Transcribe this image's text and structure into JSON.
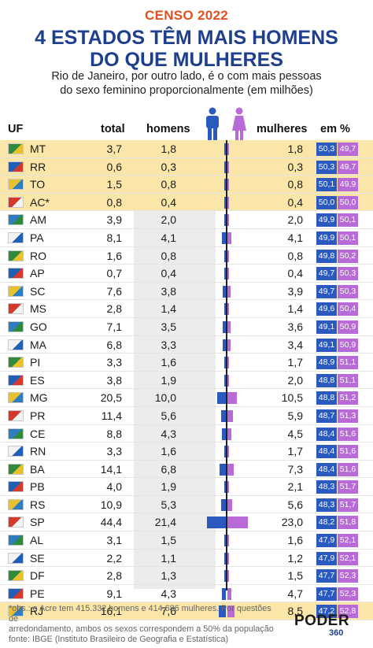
{
  "header": {
    "tag": "CENSO 2022",
    "title_line1": "4 ESTADOS TÊM MAIS HOMENS",
    "title_line2": "DO QUE MULHERES",
    "subtitle_line1": "Rio de Janeiro, por outro lado, é o com mais pessoas",
    "subtitle_line2": "do sexo feminino proporcionalmente (em milhões)"
  },
  "columns": {
    "uf": "UF",
    "total": "total",
    "homens": "homens",
    "mulheres": "mulheres",
    "pct": "em %"
  },
  "icons": {
    "male": "male-person-icon",
    "female": "female-person-icon"
  },
  "colors": {
    "male": "#2a5ac0",
    "female": "#b86ad6",
    "highlight": "#fbe6a9",
    "title": "#1e3f8e",
    "tag": "#e3501e"
  },
  "chart_data": {
    "type": "table",
    "rows": [
      {
        "uf": "MT",
        "total": "3,7",
        "homens": "1,8",
        "mulheres": "1,8",
        "pct_h": "50,3",
        "pct_m": "49,7",
        "h": 1.85,
        "m": 1.83,
        "highlight": true
      },
      {
        "uf": "RR",
        "total": "0,6",
        "homens": "0,3",
        "mulheres": "0,3",
        "pct_h": "50,3",
        "pct_m": "49,7",
        "h": 0.32,
        "m": 0.32,
        "highlight": true
      },
      {
        "uf": "TO",
        "total": "1,5",
        "homens": "0,8",
        "mulheres": "0,8",
        "pct_h": "50,1",
        "pct_m": "49,9",
        "h": 0.77,
        "m": 0.76,
        "highlight": true
      },
      {
        "uf": "AC*",
        "total": "0,8",
        "homens": "0,4",
        "mulheres": "0,4",
        "pct_h": "50,0",
        "pct_m": "50,0",
        "h": 0.42,
        "m": 0.41,
        "highlight": true
      },
      {
        "uf": "AM",
        "total": "3,9",
        "homens": "2,0",
        "mulheres": "2,0",
        "pct_h": "49,9",
        "pct_m": "50,1",
        "h": 1.97,
        "m": 1.97,
        "highlight": false
      },
      {
        "uf": "PA",
        "total": "8,1",
        "homens": "4,1",
        "mulheres": "4,1",
        "pct_h": "49,9",
        "pct_m": "50,1",
        "h": 4.05,
        "m": 4.07,
        "highlight": false
      },
      {
        "uf": "RO",
        "total": "1,6",
        "homens": "0,8",
        "mulheres": "0,8",
        "pct_h": "49,8",
        "pct_m": "50,2",
        "h": 0.79,
        "m": 0.79,
        "highlight": false
      },
      {
        "uf": "AP",
        "total": "0,7",
        "homens": "0,4",
        "mulheres": "0,4",
        "pct_h": "49,7",
        "pct_m": "50,3",
        "h": 0.37,
        "m": 0.37,
        "highlight": false
      },
      {
        "uf": "SC",
        "total": "7,6",
        "homens": "3,8",
        "mulheres": "3,9",
        "pct_h": "49,7",
        "pct_m": "50,3",
        "h": 3.78,
        "m": 3.83,
        "highlight": false
      },
      {
        "uf": "MS",
        "total": "2,8",
        "homens": "1,4",
        "mulheres": "1,4",
        "pct_h": "49,6",
        "pct_m": "50,4",
        "h": 1.38,
        "m": 1.39,
        "highlight": false
      },
      {
        "uf": "GO",
        "total": "7,1",
        "homens": "3,5",
        "mulheres": "3,6",
        "pct_h": "49,1",
        "pct_m": "50,9",
        "h": 3.49,
        "m": 3.57,
        "highlight": false
      },
      {
        "uf": "MA",
        "total": "6,8",
        "homens": "3,3",
        "mulheres": "3,4",
        "pct_h": "49,1",
        "pct_m": "50,9",
        "h": 3.33,
        "m": 3.44,
        "highlight": false
      },
      {
        "uf": "PI",
        "total": "3,3",
        "homens": "1,6",
        "mulheres": "1,7",
        "pct_h": "48,9",
        "pct_m": "51,1",
        "h": 1.61,
        "m": 1.66,
        "highlight": false
      },
      {
        "uf": "ES",
        "total": "3,8",
        "homens": "1,9",
        "mulheres": "2,0",
        "pct_h": "48,8",
        "pct_m": "51,1",
        "h": 1.87,
        "m": 1.96,
        "highlight": false
      },
      {
        "uf": "MG",
        "total": "20,5",
        "homens": "10,0",
        "mulheres": "10,5",
        "pct_h": "48,8",
        "pct_m": "51,2",
        "h": 10.0,
        "m": 10.5,
        "highlight": false
      },
      {
        "uf": "PR",
        "total": "11,4",
        "homens": "5,6",
        "mulheres": "5,9",
        "pct_h": "48,7",
        "pct_m": "51,3",
        "h": 5.56,
        "m": 5.88,
        "highlight": false
      },
      {
        "uf": "CE",
        "total": "8,8",
        "homens": "4,3",
        "mulheres": "4,5",
        "pct_h": "48,4",
        "pct_m": "51,6",
        "h": 4.27,
        "m": 4.52,
        "highlight": false
      },
      {
        "uf": "RN",
        "total": "3,3",
        "homens": "1,6",
        "mulheres": "1,7",
        "pct_h": "48,4",
        "pct_m": "51,6",
        "h": 1.6,
        "m": 1.7,
        "highlight": false
      },
      {
        "uf": "BA",
        "total": "14,1",
        "homens": "6,8",
        "mulheres": "7,3",
        "pct_h": "48,4",
        "pct_m": "51,6",
        "h": 6.84,
        "m": 7.3,
        "highlight": false
      },
      {
        "uf": "PB",
        "total": "4,0",
        "homens": "1,9",
        "mulheres": "2,1",
        "pct_h": "48,3",
        "pct_m": "51,7",
        "h": 1.92,
        "m": 2.06,
        "highlight": false
      },
      {
        "uf": "RS",
        "total": "10,9",
        "homens": "5,3",
        "mulheres": "5,6",
        "pct_h": "48,3",
        "pct_m": "51,7",
        "h": 5.27,
        "m": 5.61,
        "highlight": false
      },
      {
        "uf": "SP",
        "total": "44,4",
        "homens": "21,4",
        "mulheres": "23,0",
        "pct_h": "48,2",
        "pct_m": "51,8",
        "h": 21.4,
        "m": 23.0,
        "highlight": false
      },
      {
        "uf": "AL",
        "total": "3,1",
        "homens": "1,5",
        "mulheres": "1,6",
        "pct_h": "47,9",
        "pct_m": "52,1",
        "h": 1.5,
        "m": 1.63,
        "highlight": false
      },
      {
        "uf": "SE",
        "total": "2,2",
        "homens": "1,1",
        "mulheres": "1,2",
        "pct_h": "47,9",
        "pct_m": "52,1",
        "h": 1.06,
        "m": 1.15,
        "highlight": false
      },
      {
        "uf": "DF",
        "total": "2,8",
        "homens": "1,3",
        "mulheres": "1,5",
        "pct_h": "47,7",
        "pct_m": "52,3",
        "h": 1.34,
        "m": 1.47,
        "highlight": false
      },
      {
        "uf": "PE",
        "total": "9,1",
        "homens": "4,3",
        "mulheres": "4,7",
        "pct_h": "47,7",
        "pct_m": "52,3",
        "h": 4.34,
        "m": 4.72,
        "highlight": false
      },
      {
        "uf": "RJ",
        "total": "16,1",
        "homens": "7,6",
        "mulheres": "8,5",
        "pct_h": "47,2",
        "pct_m": "52,8",
        "h": 7.59,
        "m": 8.46,
        "highlight": true
      }
    ]
  },
  "footer": {
    "note_line1": "*obs.: o Acre tem 415.332 homens e 414.686 mulheres. Por questões de",
    "note_line2": "arredondamento, ambos os sexos correspondem a 50% da população",
    "note_line3": "fonte: IBGE (Instituto Brasileiro de Geografia e Estatística)",
    "logo_main": "PODER",
    "logo_sub": "360"
  }
}
